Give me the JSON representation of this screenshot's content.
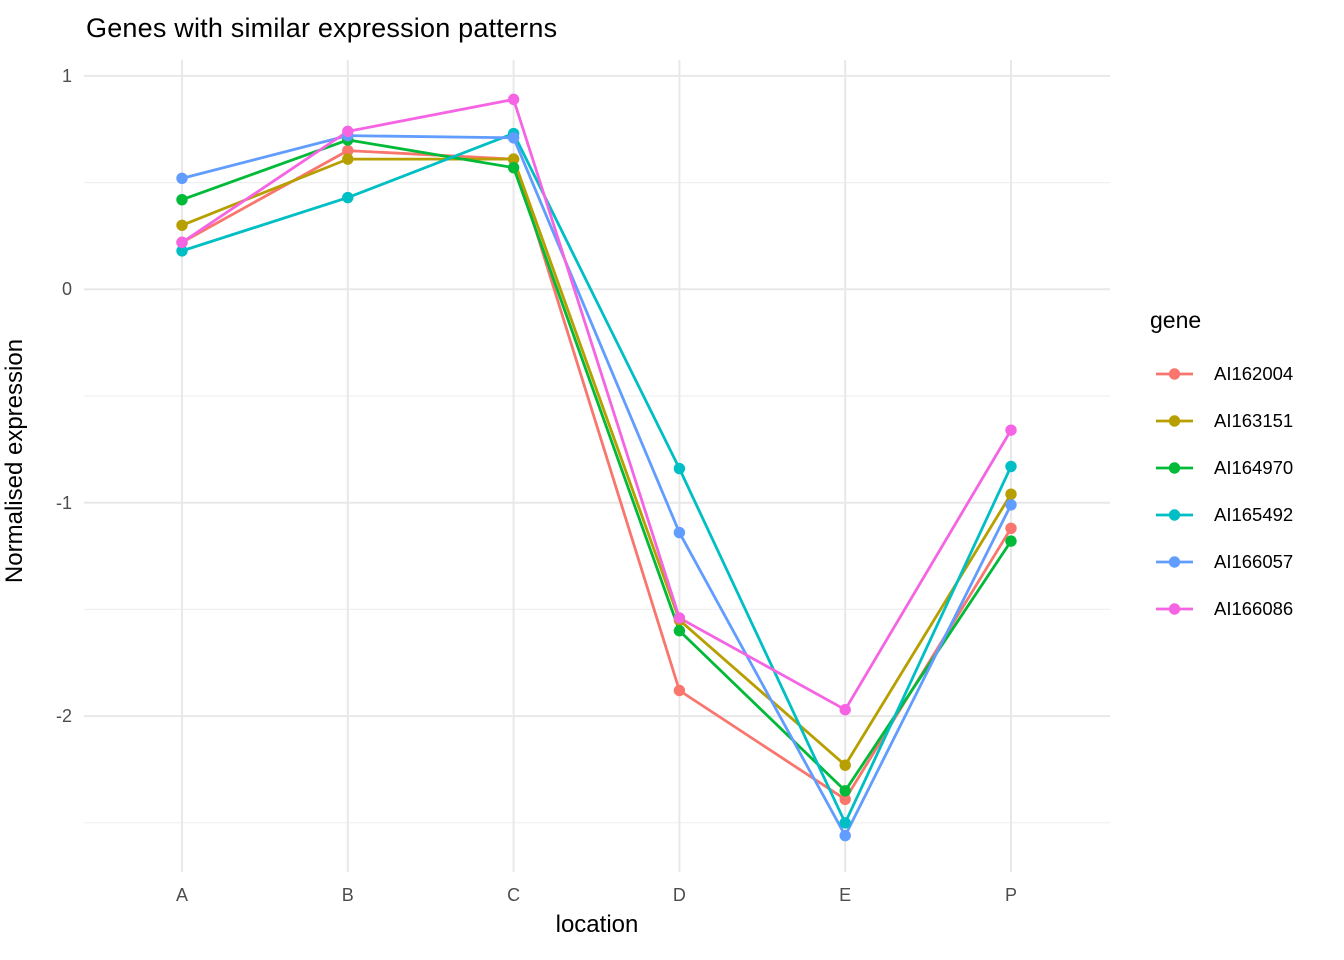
{
  "chart": {
    "title": "Genes with similar expression patterns",
    "xlabel": "location",
    "ylabel": "Normalised expression"
  },
  "legend": {
    "title": "gene",
    "position": "right"
  },
  "chart_data": {
    "type": "line",
    "title": "Genes with similar expression patterns",
    "xlabel": "location",
    "ylabel": "Normalised expression",
    "categories": [
      "A",
      "B",
      "C",
      "D",
      "E",
      "P"
    ],
    "y_ticks": [
      1,
      0,
      -1,
      -2
    ],
    "y_minor_ticks": [
      0.5,
      -0.5,
      -1.5,
      -2.5
    ],
    "ylim": [
      -2.73,
      1.06
    ],
    "grid": true,
    "legend_position": "right",
    "grid_major_color": "#E8E8E8",
    "grid_minor_color": "#F0F0F0",
    "series": [
      {
        "name": "AI162004",
        "color": "#F8766D",
        "values": [
          0.22,
          0.65,
          0.61,
          -1.88,
          -2.39,
          -1.12
        ]
      },
      {
        "name": "AI163151",
        "color": "#B79F00",
        "values": [
          0.3,
          0.61,
          0.61,
          -1.55,
          -2.23,
          -0.96
        ]
      },
      {
        "name": "AI164970",
        "color": "#00BA38",
        "values": [
          0.42,
          0.7,
          0.57,
          -1.6,
          -2.35,
          -1.18
        ]
      },
      {
        "name": "AI165492",
        "color": "#00BFC4",
        "values": [
          0.18,
          0.43,
          0.73,
          -0.84,
          -2.5,
          -0.83
        ]
      },
      {
        "name": "AI166057",
        "color": "#619CFF",
        "values": [
          0.52,
          0.72,
          0.71,
          -1.14,
          -2.56,
          -1.01
        ]
      },
      {
        "name": "AI166086",
        "color": "#F564E3",
        "values": [
          0.22,
          0.74,
          0.89,
          -1.54,
          -1.97,
          -0.66
        ]
      }
    ]
  }
}
